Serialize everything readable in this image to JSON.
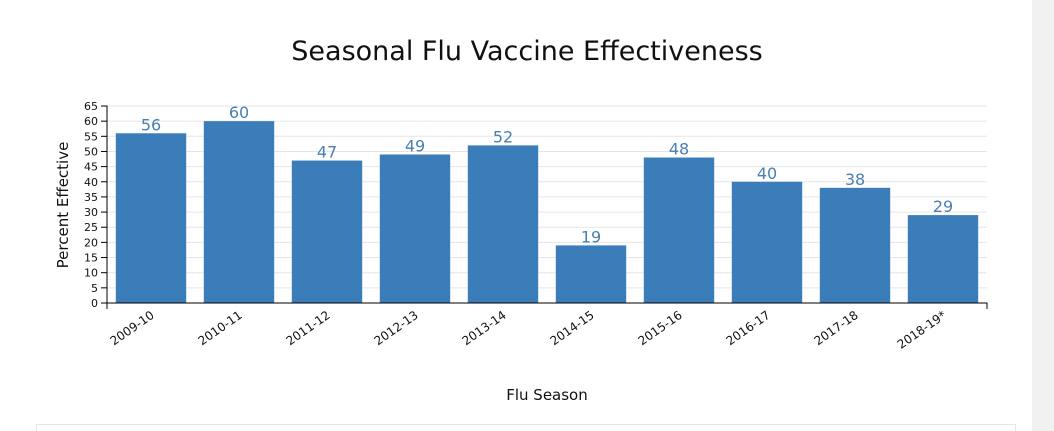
{
  "chart_data": {
    "type": "bar",
    "title": "Seasonal Flu Vaccine Effectiveness",
    "xlabel": "Flu Season",
    "ylabel": "Percent Effective",
    "categories": [
      "2009-10",
      "2010-11",
      "2011-12",
      "2012-13",
      "2013-14",
      "2014-15",
      "2015-16",
      "2016-17",
      "2017-18",
      "2018-19*"
    ],
    "values": [
      56,
      60,
      47,
      49,
      52,
      19,
      48,
      40,
      38,
      29
    ],
    "ylim": [
      0,
      65
    ],
    "yticks": [
      0,
      5,
      10,
      15,
      20,
      25,
      30,
      35,
      40,
      45,
      50,
      55,
      60,
      65
    ],
    "grid": true,
    "colors": {
      "bar": "#3a7db8",
      "data_label": "#4a7fb0"
    }
  }
}
